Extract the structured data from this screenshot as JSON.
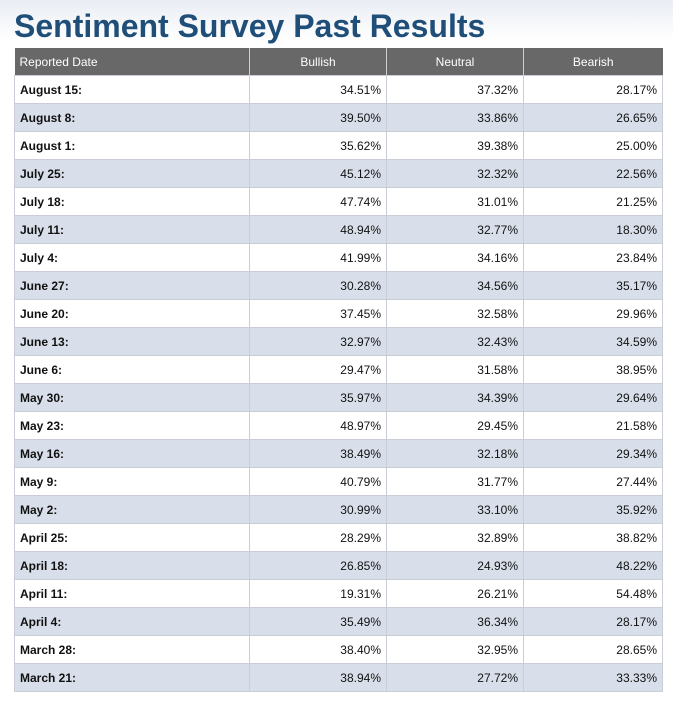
{
  "page": {
    "title": "Sentiment Survey Past Results"
  },
  "colors": {
    "title": "#1f4e79",
    "header_bg": "#686868",
    "header_text": "#ffffff",
    "row_alt": "#d9dfea",
    "row": "#ffffff"
  },
  "table": {
    "headers": {
      "date": "Reported Date",
      "bullish": "Bullish",
      "neutral": "Neutral",
      "bearish": "Bearish"
    },
    "rows": [
      {
        "date": "August 15:",
        "bullish": "34.51%",
        "neutral": "37.32%",
        "bearish": "28.17%"
      },
      {
        "date": "August 8:",
        "bullish": "39.50%",
        "neutral": "33.86%",
        "bearish": "26.65%"
      },
      {
        "date": "August 1:",
        "bullish": "35.62%",
        "neutral": "39.38%",
        "bearish": "25.00%"
      },
      {
        "date": "July 25:",
        "bullish": "45.12%",
        "neutral": "32.32%",
        "bearish": "22.56%"
      },
      {
        "date": "July 18:",
        "bullish": "47.74%",
        "neutral": "31.01%",
        "bearish": "21.25%"
      },
      {
        "date": "July 11:",
        "bullish": "48.94%",
        "neutral": "32.77%",
        "bearish": "18.30%"
      },
      {
        "date": "July 4:",
        "bullish": "41.99%",
        "neutral": "34.16%",
        "bearish": "23.84%"
      },
      {
        "date": "June 27:",
        "bullish": "30.28%",
        "neutral": "34.56%",
        "bearish": "35.17%"
      },
      {
        "date": "June 20:",
        "bullish": "37.45%",
        "neutral": "32.58%",
        "bearish": "29.96%"
      },
      {
        "date": "June 13:",
        "bullish": "32.97%",
        "neutral": "32.43%",
        "bearish": "34.59%"
      },
      {
        "date": "June 6:",
        "bullish": "29.47%",
        "neutral": "31.58%",
        "bearish": "38.95%"
      },
      {
        "date": "May 30:",
        "bullish": "35.97%",
        "neutral": "34.39%",
        "bearish": "29.64%"
      },
      {
        "date": "May 23:",
        "bullish": "48.97%",
        "neutral": "29.45%",
        "bearish": "21.58%"
      },
      {
        "date": "May 16:",
        "bullish": "38.49%",
        "neutral": "32.18%",
        "bearish": "29.34%"
      },
      {
        "date": "May 9:",
        "bullish": "40.79%",
        "neutral": "31.77%",
        "bearish": "27.44%"
      },
      {
        "date": "May 2:",
        "bullish": "30.99%",
        "neutral": "33.10%",
        "bearish": "35.92%"
      },
      {
        "date": "April 25:",
        "bullish": "28.29%",
        "neutral": "32.89%",
        "bearish": "38.82%"
      },
      {
        "date": "April 18:",
        "bullish": "26.85%",
        "neutral": "24.93%",
        "bearish": "48.22%"
      },
      {
        "date": "April 11:",
        "bullish": "19.31%",
        "neutral": "26.21%",
        "bearish": "54.48%"
      },
      {
        "date": "April 4:",
        "bullish": "35.49%",
        "neutral": "36.34%",
        "bearish": "28.17%"
      },
      {
        "date": "March 28:",
        "bullish": "38.40%",
        "neutral": "32.95%",
        "bearish": "28.65%"
      },
      {
        "date": "March 21:",
        "bullish": "38.94%",
        "neutral": "27.72%",
        "bearish": "33.33%"
      }
    ]
  }
}
